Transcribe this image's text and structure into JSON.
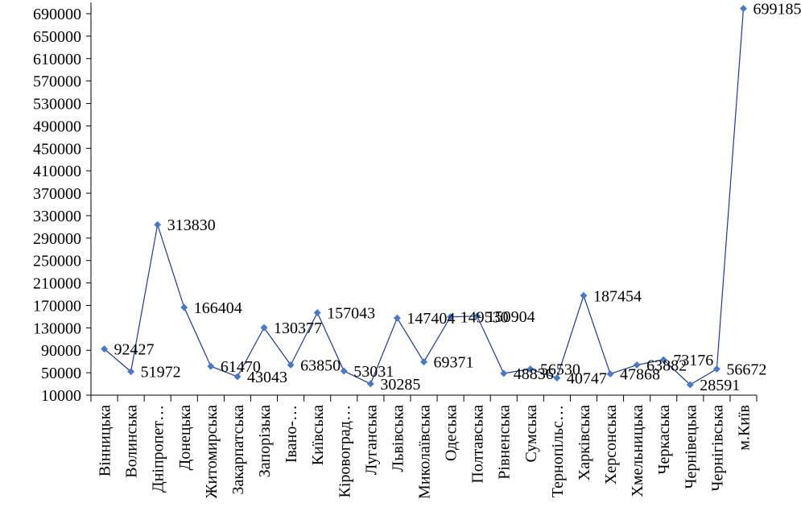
{
  "chart_data": {
    "type": "line",
    "categories": [
      "Вінницька",
      "Волинська",
      "Дніпропет…",
      "Донецька",
      "Житомирська",
      "Закарпатська",
      "Запорізька",
      "Івано-…",
      "Київська",
      "Кіровоград…",
      "Луганська",
      "Львівська",
      "Миколаївська",
      "Одеська",
      "Полтавська",
      "Рівненська",
      "Сумська",
      "Тернопільс…",
      "Харківська",
      "Херсонська",
      "Хмельницька",
      "Черкаська",
      "Чернівецька",
      "Чернігівська",
      "м.Київ"
    ],
    "values": [
      92427,
      51972,
      313830,
      166404,
      61470,
      43043,
      130377,
      63850,
      157043,
      53031,
      30285,
      147404,
      69371,
      149530,
      150904,
      48836,
      56530,
      40747,
      187454,
      47868,
      63882,
      73176,
      28591,
      56672,
      699185
    ],
    "data_labels": [
      "92427",
      "51972",
      "313830",
      "166404",
      "61470",
      "43043",
      "130377",
      "63850",
      "157043",
      "53031",
      "30285",
      "147404",
      "69371",
      "149530",
      "150904",
      "48836",
      "56530",
      "40747",
      "187454",
      "47868",
      "63882",
      "73176",
      "28591",
      "56672",
      "699185"
    ],
    "y_ticks": [
      "10000",
      "50000",
      "90000",
      "130000",
      "170000",
      "210000",
      "250000",
      "290000",
      "330000",
      "370000",
      "410000",
      "450000",
      "490000",
      "530000",
      "570000",
      "610000",
      "650000",
      "690000"
    ],
    "ylim": [
      10000,
      710000
    ],
    "series_color": "#1f3a8a",
    "marker_color": "#4a78c2",
    "title": "",
    "xlabel": "",
    "ylabel": "",
    "grid": false,
    "legend": "none"
  }
}
